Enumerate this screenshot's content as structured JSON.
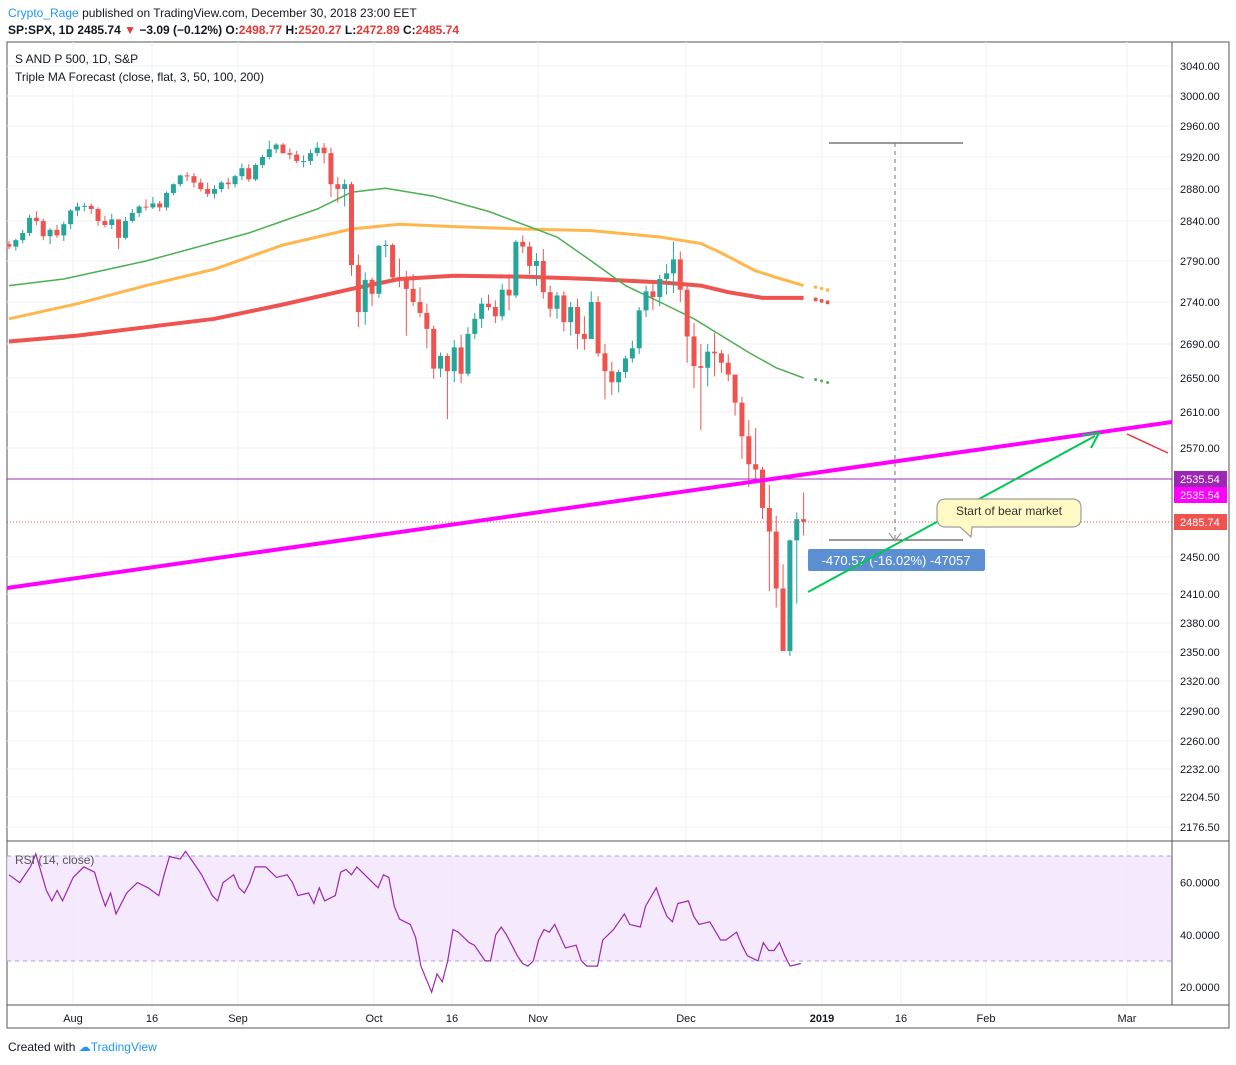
{
  "header": {
    "author": "Crypto_Rage",
    "published_text": "published on TradingView.com, December 30, 2018 23:00 EET",
    "symbol": "SP:SPX, 1D",
    "last": "2485.74",
    "change": "−3.09 (−0.12%)",
    "o_label": "O:",
    "o": "2498.77",
    "h_label": "H:",
    "h": "2520.27",
    "l_label": "L:",
    "l": "2472.89",
    "c_label": "C:",
    "c": "2485.74"
  },
  "legend": {
    "title": "S AND P 500, 1D, S&P",
    "indicator": "Triple MA Forecast (close, flat, 3, 50, 100, 200)"
  },
  "annotations": {
    "measure_label": "-470.57 (-16.02%) -47057",
    "callout": "Start of bear market"
  },
  "rsi_label": "RSI (14, close)",
  "footer": {
    "created_with": "Created with",
    "brand": "TradingView"
  },
  "colors": {
    "up": "#26a69a",
    "down": "#ef5350",
    "ma50": "#4caf50",
    "ma100": "#ffb74d",
    "ma200": "#ef5350",
    "trendline": "#ff00ff",
    "hline": "#9c27b0",
    "rsi": "#9c27b0",
    "arrow": "#00c853",
    "label_bg": "#5b8fd1"
  },
  "chart_data": {
    "type": "candlestick",
    "y_ticks": [
      "3040.00",
      "3000.00",
      "2960.00",
      "2920.00",
      "2880.00",
      "2840.00",
      "2790.00",
      "2740.00",
      "2690.00",
      "2650.00",
      "2610.00",
      "2570.00",
      "2535.54",
      "2535.54",
      "2485.74",
      "2450.00",
      "2410.00",
      "2380.00",
      "2350.00",
      "2320.00",
      "2290.00",
      "2260.00",
      "2232.00",
      "2204.50",
      "2176.50"
    ],
    "price_tags": [
      {
        "value": "2535.54",
        "color": "#9c27b0"
      },
      {
        "value": "2535.54",
        "color": "#ff00ff"
      },
      {
        "value": "2485.74",
        "color": "#ef5350"
      }
    ],
    "x_ticks": [
      "Aug",
      "16",
      "Sep",
      "Oct",
      "16",
      "Nov",
      "Dec",
      "2019",
      "16",
      "Feb",
      "Mar"
    ],
    "rsi_ticks": [
      "60.0000",
      "40.0000",
      "20.0000"
    ],
    "ylim": [
      2150,
      3060
    ],
    "candles": [
      [
        2811,
        2815,
        2805,
        2808
      ],
      [
        2808,
        2818,
        2803,
        2816
      ],
      [
        2816,
        2829,
        2812,
        2825
      ],
      [
        2825,
        2848,
        2821,
        2844
      ],
      [
        2844,
        2852,
        2835,
        2840
      ],
      [
        2840,
        2843,
        2816,
        2821
      ],
      [
        2821,
        2831,
        2811,
        2829
      ],
      [
        2829,
        2835,
        2819,
        2822
      ],
      [
        2822,
        2839,
        2815,
        2836
      ],
      [
        2836,
        2855,
        2830,
        2853
      ],
      [
        2853,
        2863,
        2846,
        2858
      ],
      [
        2858,
        2863,
        2852,
        2859
      ],
      [
        2859,
        2862,
        2849,
        2855
      ],
      [
        2855,
        2857,
        2834,
        2840
      ],
      [
        2840,
        2846,
        2832,
        2835
      ],
      [
        2835,
        2849,
        2830,
        2842
      ],
      [
        2842,
        2842,
        2805,
        2819
      ],
      [
        2819,
        2845,
        2817,
        2840
      ],
      [
        2840,
        2855,
        2838,
        2850
      ],
      [
        2850,
        2860,
        2845,
        2858
      ],
      [
        2858,
        2867,
        2853,
        2857
      ],
      [
        2857,
        2870,
        2855,
        2862
      ],
      [
        2862,
        2865,
        2852,
        2857
      ],
      [
        2857,
        2877,
        2853,
        2875
      ],
      [
        2875,
        2887,
        2872,
        2886
      ],
      [
        2886,
        2898,
        2883,
        2897
      ],
      [
        2897,
        2901,
        2890,
        2896
      ],
      [
        2896,
        2900,
        2882,
        2888
      ],
      [
        2888,
        2893,
        2877,
        2880
      ],
      [
        2880,
        2888,
        2870,
        2874
      ],
      [
        2874,
        2885,
        2868,
        2880
      ],
      [
        2880,
        2890,
        2876,
        2888
      ],
      [
        2888,
        2894,
        2880,
        2886
      ],
      [
        2886,
        2898,
        2882,
        2896
      ],
      [
        2896,
        2912,
        2891,
        2906
      ],
      [
        2906,
        2911,
        2889,
        2892
      ],
      [
        2892,
        2912,
        2890,
        2910
      ],
      [
        2910,
        2923,
        2906,
        2920
      ],
      [
        2920,
        2941,
        2917,
        2930
      ],
      [
        2930,
        2938,
        2925,
        2936
      ],
      [
        2936,
        2938,
        2924,
        2925
      ],
      [
        2925,
        2931,
        2917,
        2923
      ],
      [
        2923,
        2928,
        2912,
        2915
      ],
      [
        2915,
        2922,
        2907,
        2915
      ],
      [
        2915,
        2930,
        2910,
        2925
      ],
      [
        2925,
        2939,
        2921,
        2932
      ],
      [
        2932,
        2938,
        2912,
        2925
      ],
      [
        2925,
        2932,
        2870,
        2886
      ],
      [
        2886,
        2895,
        2863,
        2880
      ],
      [
        2880,
        2892,
        2858,
        2886
      ],
      [
        2886,
        2889,
        2772,
        2785
      ],
      [
        2785,
        2798,
        2710,
        2728
      ],
      [
        2728,
        2776,
        2713,
        2767
      ],
      [
        2767,
        2770,
        2735,
        2750
      ],
      [
        2750,
        2810,
        2745,
        2809
      ],
      [
        2809,
        2816,
        2795,
        2810
      ],
      [
        2810,
        2812,
        2765,
        2770
      ],
      [
        2770,
        2793,
        2758,
        2768
      ],
      [
        2768,
        2778,
        2700,
        2756
      ],
      [
        2756,
        2774,
        2735,
        2740
      ],
      [
        2740,
        2758,
        2722,
        2727
      ],
      [
        2727,
        2738,
        2685,
        2708
      ],
      [
        2708,
        2712,
        2649,
        2661
      ],
      [
        2661,
        2680,
        2651,
        2676
      ],
      [
        2676,
        2679,
        2602,
        2658
      ],
      [
        2658,
        2695,
        2645,
        2686
      ],
      [
        2686,
        2701,
        2644,
        2655
      ],
      [
        2655,
        2710,
        2652,
        2702
      ],
      [
        2702,
        2727,
        2696,
        2720
      ],
      [
        2720,
        2745,
        2709,
        2738
      ],
      [
        2738,
        2749,
        2730,
        2734
      ],
      [
        2734,
        2742,
        2715,
        2723
      ],
      [
        2723,
        2762,
        2718,
        2755
      ],
      [
        2755,
        2770,
        2730,
        2748
      ],
      [
        2748,
        2816,
        2745,
        2814
      ],
      [
        2814,
        2822,
        2800,
        2808
      ],
      [
        2808,
        2814,
        2774,
        2784
      ],
      [
        2784,
        2800,
        2760,
        2790
      ],
      [
        2790,
        2805,
        2744,
        2752
      ],
      [
        2752,
        2760,
        2722,
        2732
      ],
      [
        2732,
        2752,
        2720,
        2748
      ],
      [
        2748,
        2753,
        2705,
        2716
      ],
      [
        2716,
        2740,
        2700,
        2734
      ],
      [
        2734,
        2744,
        2684,
        2702
      ],
      [
        2702,
        2723,
        2683,
        2696
      ],
      [
        2696,
        2753,
        2696,
        2740
      ],
      [
        2740,
        2747,
        2675,
        2679
      ],
      [
        2679,
        2690,
        2625,
        2658
      ],
      [
        2658,
        2669,
        2630,
        2645
      ],
      [
        2645,
        2660,
        2633,
        2657
      ],
      [
        2657,
        2676,
        2650,
        2673
      ],
      [
        2673,
        2694,
        2668,
        2685
      ],
      [
        2685,
        2734,
        2678,
        2730
      ],
      [
        2730,
        2760,
        2722,
        2753
      ],
      [
        2753,
        2762,
        2730,
        2746
      ],
      [
        2746,
        2773,
        2735,
        2768
      ],
      [
        2768,
        2786,
        2749,
        2775
      ],
      [
        2775,
        2814,
        2751,
        2792
      ],
      [
        2792,
        2802,
        2740,
        2755
      ],
      [
        2755,
        2762,
        2668,
        2699
      ],
      [
        2699,
        2715,
        2638,
        2664
      ],
      [
        2664,
        2690,
        2590,
        2662
      ],
      [
        2662,
        2690,
        2640,
        2681
      ],
      [
        2681,
        2703,
        2652,
        2679
      ],
      [
        2679,
        2683,
        2656,
        2668
      ],
      [
        2668,
        2678,
        2646,
        2654
      ],
      [
        2654,
        2652,
        2606,
        2621
      ],
      [
        2621,
        2628,
        2558,
        2583
      ],
      [
        2583,
        2601,
        2526,
        2552
      ],
      [
        2552,
        2592,
        2530,
        2546
      ],
      [
        2546,
        2549,
        2489,
        2502
      ],
      [
        2502,
        2529,
        2413,
        2476
      ],
      [
        2476,
        2493,
        2396,
        2416
      ],
      [
        2416,
        2442,
        2351,
        2351
      ],
      [
        2351,
        2468,
        2346,
        2467
      ],
      [
        2467,
        2497,
        2400,
        2489
      ],
      [
        2489,
        2520,
        2472,
        2486
      ]
    ],
    "ma50": [
      [
        0,
        2760
      ],
      [
        8,
        2768
      ],
      [
        20,
        2790
      ],
      [
        35,
        2825
      ],
      [
        45,
        2855
      ],
      [
        50,
        2876
      ],
      [
        55,
        2881
      ],
      [
        62,
        2871
      ],
      [
        70,
        2852
      ],
      [
        80,
        2820
      ],
      [
        85,
        2790
      ],
      [
        90,
        2760
      ],
      [
        95,
        2740
      ],
      [
        100,
        2720
      ],
      [
        104,
        2700
      ],
      [
        108,
        2680
      ],
      [
        112,
        2662
      ],
      [
        116,
        2650
      ]
    ],
    "ma100": [
      [
        0,
        2720
      ],
      [
        10,
        2738
      ],
      [
        20,
        2760
      ],
      [
        30,
        2780
      ],
      [
        40,
        2810
      ],
      [
        50,
        2830
      ],
      [
        57,
        2836
      ],
      [
        65,
        2833
      ],
      [
        75,
        2830
      ],
      [
        85,
        2828
      ],
      [
        95,
        2820
      ],
      [
        101,
        2812
      ],
      [
        104,
        2800
      ],
      [
        109,
        2778
      ],
      [
        112,
        2770
      ],
      [
        116,
        2760
      ]
    ],
    "ma200": [
      [
        0,
        2693
      ],
      [
        10,
        2700
      ],
      [
        20,
        2710
      ],
      [
        30,
        2720
      ],
      [
        40,
        2737
      ],
      [
        50,
        2756
      ],
      [
        57,
        2768
      ],
      [
        65,
        2772
      ],
      [
        75,
        2771
      ],
      [
        85,
        2768
      ],
      [
        95,
        2764
      ],
      [
        101,
        2760
      ],
      [
        105,
        2752
      ],
      [
        110,
        2745
      ],
      [
        116,
        2745
      ]
    ],
    "rsi": [
      [
        0,
        63
      ],
      [
        2,
        60
      ],
      [
        4,
        66
      ],
      [
        5,
        71
      ],
      [
        6,
        64
      ],
      [
        7,
        57
      ],
      [
        8,
        53
      ],
      [
        9,
        57
      ],
      [
        10,
        53
      ],
      [
        12,
        62
      ],
      [
        14,
        66
      ],
      [
        16,
        64
      ],
      [
        17,
        57
      ],
      [
        18,
        51
      ],
      [
        19,
        56
      ],
      [
        20,
        48
      ],
      [
        22,
        56
      ],
      [
        24,
        60
      ],
      [
        26,
        58
      ],
      [
        28,
        55
      ],
      [
        29,
        63
      ],
      [
        30,
        70
      ],
      [
        32,
        69
      ],
      [
        33,
        72
      ],
      [
        35,
        66
      ],
      [
        36,
        63
      ],
      [
        38,
        55
      ],
      [
        39,
        53
      ],
      [
        40,
        60
      ],
      [
        42,
        63
      ],
      [
        43,
        58
      ],
      [
        44,
        56
      ],
      [
        45,
        60
      ],
      [
        46,
        66
      ],
      [
        48,
        66
      ],
      [
        49,
        64
      ],
      [
        50,
        62
      ],
      [
        52,
        63
      ],
      [
        53,
        60
      ],
      [
        54,
        55
      ],
      [
        56,
        56
      ],
      [
        57,
        52
      ],
      [
        58,
        58
      ],
      [
        59,
        53
      ],
      [
        61,
        55
      ],
      [
        62,
        64
      ],
      [
        63,
        65
      ],
      [
        64,
        63
      ],
      [
        65,
        66
      ],
      [
        67,
        62
      ],
      [
        69,
        58
      ],
      [
        70,
        63
      ],
      [
        71,
        62
      ],
      [
        72,
        51
      ],
      [
        73,
        46
      ],
      [
        75,
        44
      ],
      [
        76,
        39
      ],
      [
        77,
        28
      ],
      [
        78,
        23
      ],
      [
        79,
        18
      ],
      [
        80,
        25
      ],
      [
        81,
        22
      ],
      [
        82,
        30
      ],
      [
        83,
        42
      ],
      [
        84,
        41
      ],
      [
        86,
        37
      ],
      [
        87,
        36
      ],
      [
        89,
        30
      ],
      [
        90,
        30
      ],
      [
        91,
        40
      ],
      [
        92,
        43
      ],
      [
        93,
        40
      ],
      [
        95,
        32
      ],
      [
        96,
        29
      ],
      [
        97,
        28
      ],
      [
        98,
        30
      ],
      [
        99,
        38
      ],
      [
        100,
        42
      ],
      [
        101,
        41
      ],
      [
        102,
        44
      ],
      [
        104,
        35
      ],
      [
        106,
        36
      ],
      [
        107,
        30
      ],
      [
        108,
        28
      ],
      [
        110,
        28
      ],
      [
        111,
        38
      ],
      [
        113,
        42
      ],
      [
        114,
        45
      ],
      [
        115,
        48
      ],
      [
        116,
        44
      ],
      [
        118,
        43
      ],
      [
        119,
        51
      ],
      [
        121,
        58
      ],
      [
        122,
        52
      ],
      [
        123,
        47
      ],
      [
        124,
        45
      ],
      [
        125,
        52
      ],
      [
        127,
        53
      ],
      [
        128,
        47
      ],
      [
        129,
        44
      ],
      [
        131,
        45
      ],
      [
        133,
        38
      ],
      [
        134,
        38
      ],
      [
        136,
        41
      ],
      [
        137,
        36
      ],
      [
        138,
        32
      ],
      [
        140,
        30
      ],
      [
        141,
        37
      ],
      [
        142,
        34
      ],
      [
        143,
        34
      ],
      [
        144,
        37
      ],
      [
        145,
        32
      ],
      [
        146,
        28
      ],
      [
        148,
        29
      ]
    ]
  }
}
